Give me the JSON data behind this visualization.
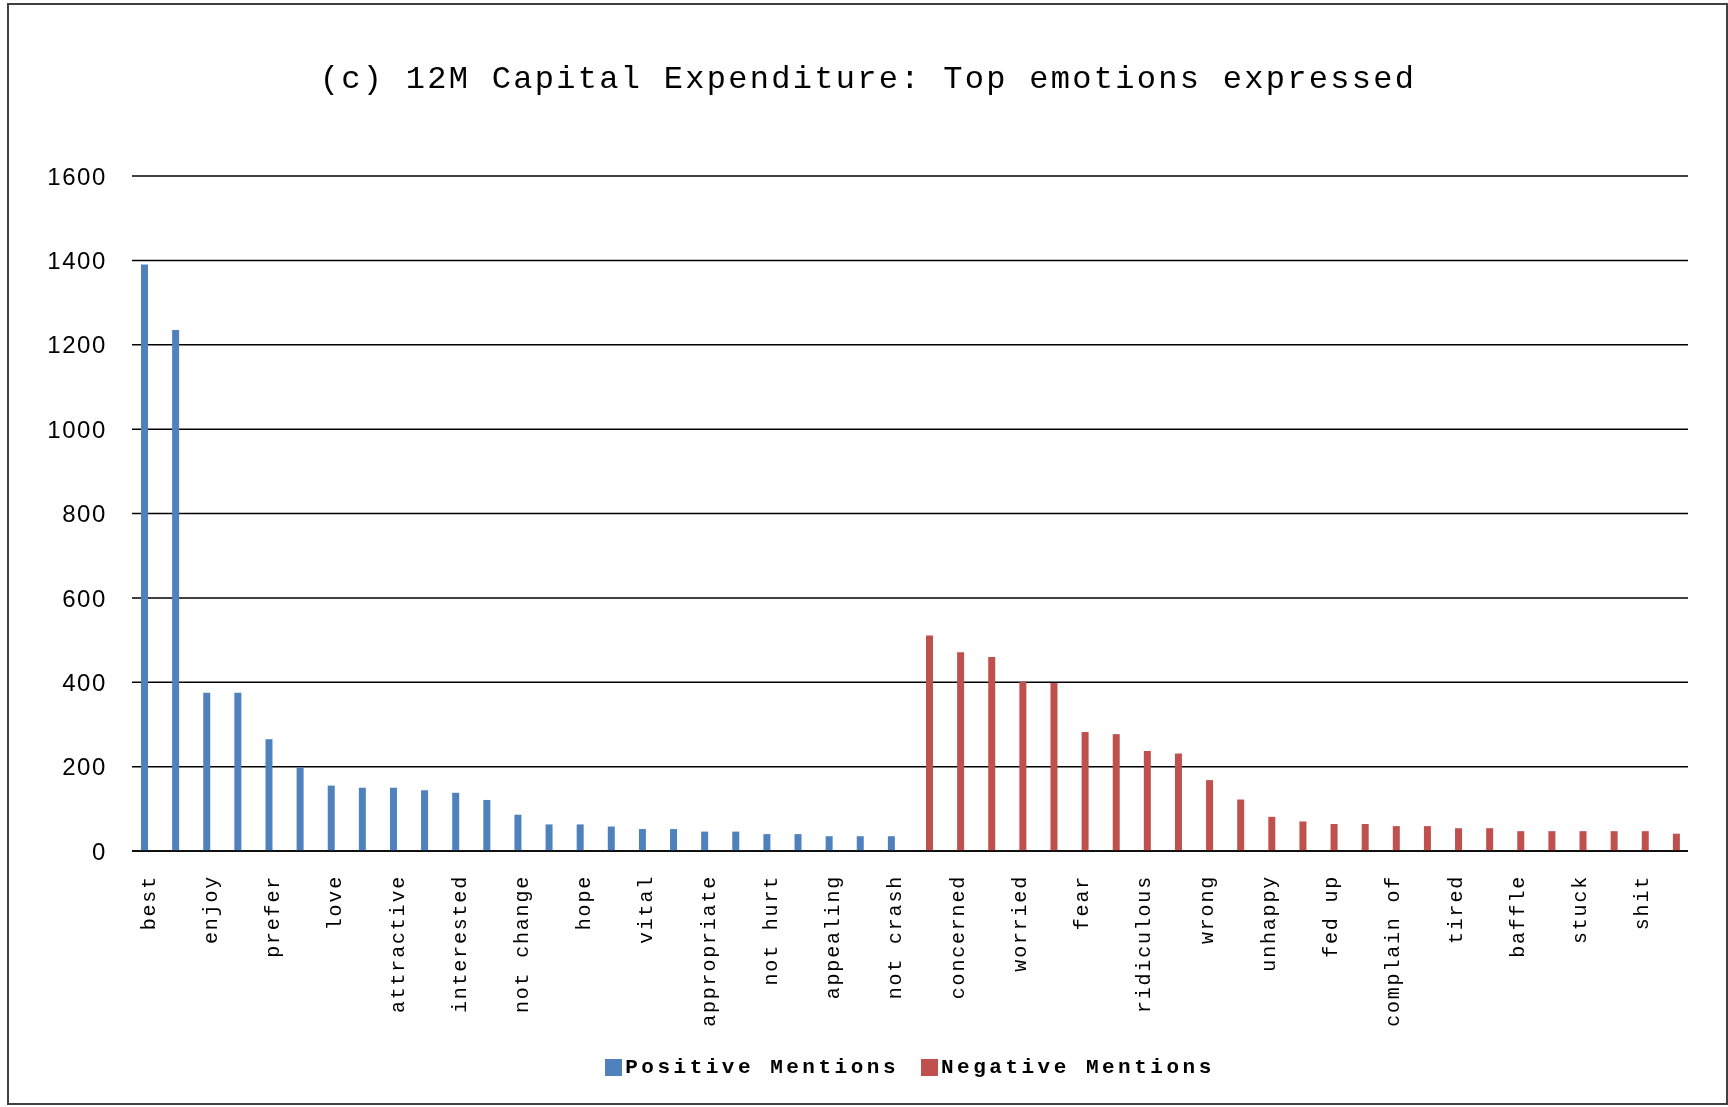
{
  "chart_data": {
    "type": "bar",
    "title": "(c) 12M Capital Expenditure: Top emotions expressed",
    "categories": [
      "best",
      null,
      "enjoy",
      null,
      "prefer",
      null,
      "love",
      null,
      "attractive",
      null,
      "interested",
      null,
      "not change",
      null,
      "hope",
      null,
      "vital",
      null,
      "appropriate",
      null,
      "not hurt",
      null,
      "appealing",
      null,
      "not crash",
      null,
      "concerned",
      null,
      "worried",
      null,
      "fear",
      null,
      "ridiculous",
      null,
      "wrong",
      null,
      "unhappy",
      null,
      "fed up",
      null,
      "complain of",
      null,
      "tired",
      null,
      "baffle",
      null,
      "stuck",
      null,
      "shit",
      null
    ],
    "series": [
      {
        "name": "Positive Mentions",
        "color": "#4f81bd",
        "values": [
          1390,
          1235,
          375,
          375,
          265,
          198,
          155,
          150,
          150,
          144,
          138,
          121,
          86,
          63,
          63,
          58,
          52,
          52,
          46,
          46,
          40,
          40,
          35,
          35,
          35,
          null,
          null,
          null,
          null,
          null,
          null,
          null,
          null,
          null,
          null,
          null,
          null,
          null,
          null,
          null,
          null,
          null,
          null,
          null,
          null,
          null,
          null,
          null,
          null,
          null
        ]
      },
      {
        "name": "Negative Mentions",
        "color": "#c0504d",
        "values": [
          null,
          null,
          null,
          null,
          null,
          null,
          null,
          null,
          null,
          null,
          null,
          null,
          null,
          null,
          null,
          null,
          null,
          null,
          null,
          null,
          null,
          null,
          null,
          null,
          null,
          511,
          471,
          460,
          401,
          398,
          282,
          277,
          237,
          231,
          168,
          122,
          81,
          70,
          64,
          64,
          59,
          59,
          54,
          54,
          47,
          47,
          47,
          47,
          47,
          41
        ]
      }
    ],
    "ylim": [
      0,
      1600
    ],
    "yticks": [
      0,
      200,
      400,
      600,
      800,
      1000,
      1200,
      1400,
      1600
    ],
    "grid": "y",
    "legend": "bottom"
  }
}
